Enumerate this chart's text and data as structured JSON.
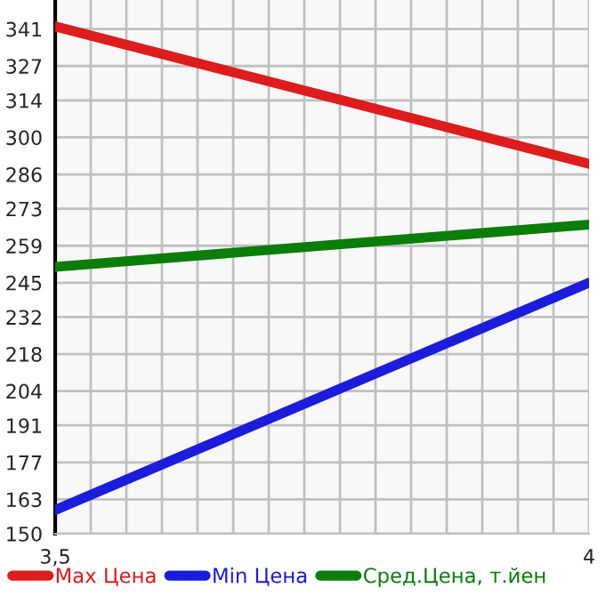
{
  "chart_data": {
    "type": "line",
    "x": [
      3.5,
      4
    ],
    "series": [
      {
        "name": "Max Цена",
        "color": "#dd1c1c",
        "values": [
          342,
          290
        ]
      },
      {
        "name": "Min Цена",
        "color": "#1c1cdd",
        "values": [
          159,
          245
        ]
      },
      {
        "name": "Сред.Цена, т.йен",
        "color": "#0a7d0a",
        "values": [
          251,
          267
        ]
      }
    ],
    "xlim": [
      3.5,
      4
    ],
    "xticks": [
      {
        "value": 3.5,
        "label": "3,5"
      },
      {
        "value": 3.5333,
        "label": null
      },
      {
        "value": 3.5667,
        "label": null
      },
      {
        "value": 3.6,
        "label": null
      },
      {
        "value": 3.6333,
        "label": null
      },
      {
        "value": 3.6667,
        "label": null
      },
      {
        "value": 3.7,
        "label": null
      },
      {
        "value": 3.7333,
        "label": null
      },
      {
        "value": 3.7667,
        "label": null
      },
      {
        "value": 3.8,
        "label": null
      },
      {
        "value": 3.8333,
        "label": null
      },
      {
        "value": 3.8667,
        "label": null
      },
      {
        "value": 3.9,
        "label": null
      },
      {
        "value": 3.9333,
        "label": null
      },
      {
        "value": 3.9667,
        "label": null
      },
      {
        "value": 4,
        "label": "4"
      }
    ],
    "ylim": [
      150,
      352
    ],
    "yticks": [
      150,
      163,
      177,
      191,
      204,
      218,
      232,
      245,
      259,
      273,
      286,
      300,
      314,
      327,
      341
    ],
    "grid": true,
    "legend": "bottom",
    "marker": "none",
    "line_style": "solid"
  }
}
